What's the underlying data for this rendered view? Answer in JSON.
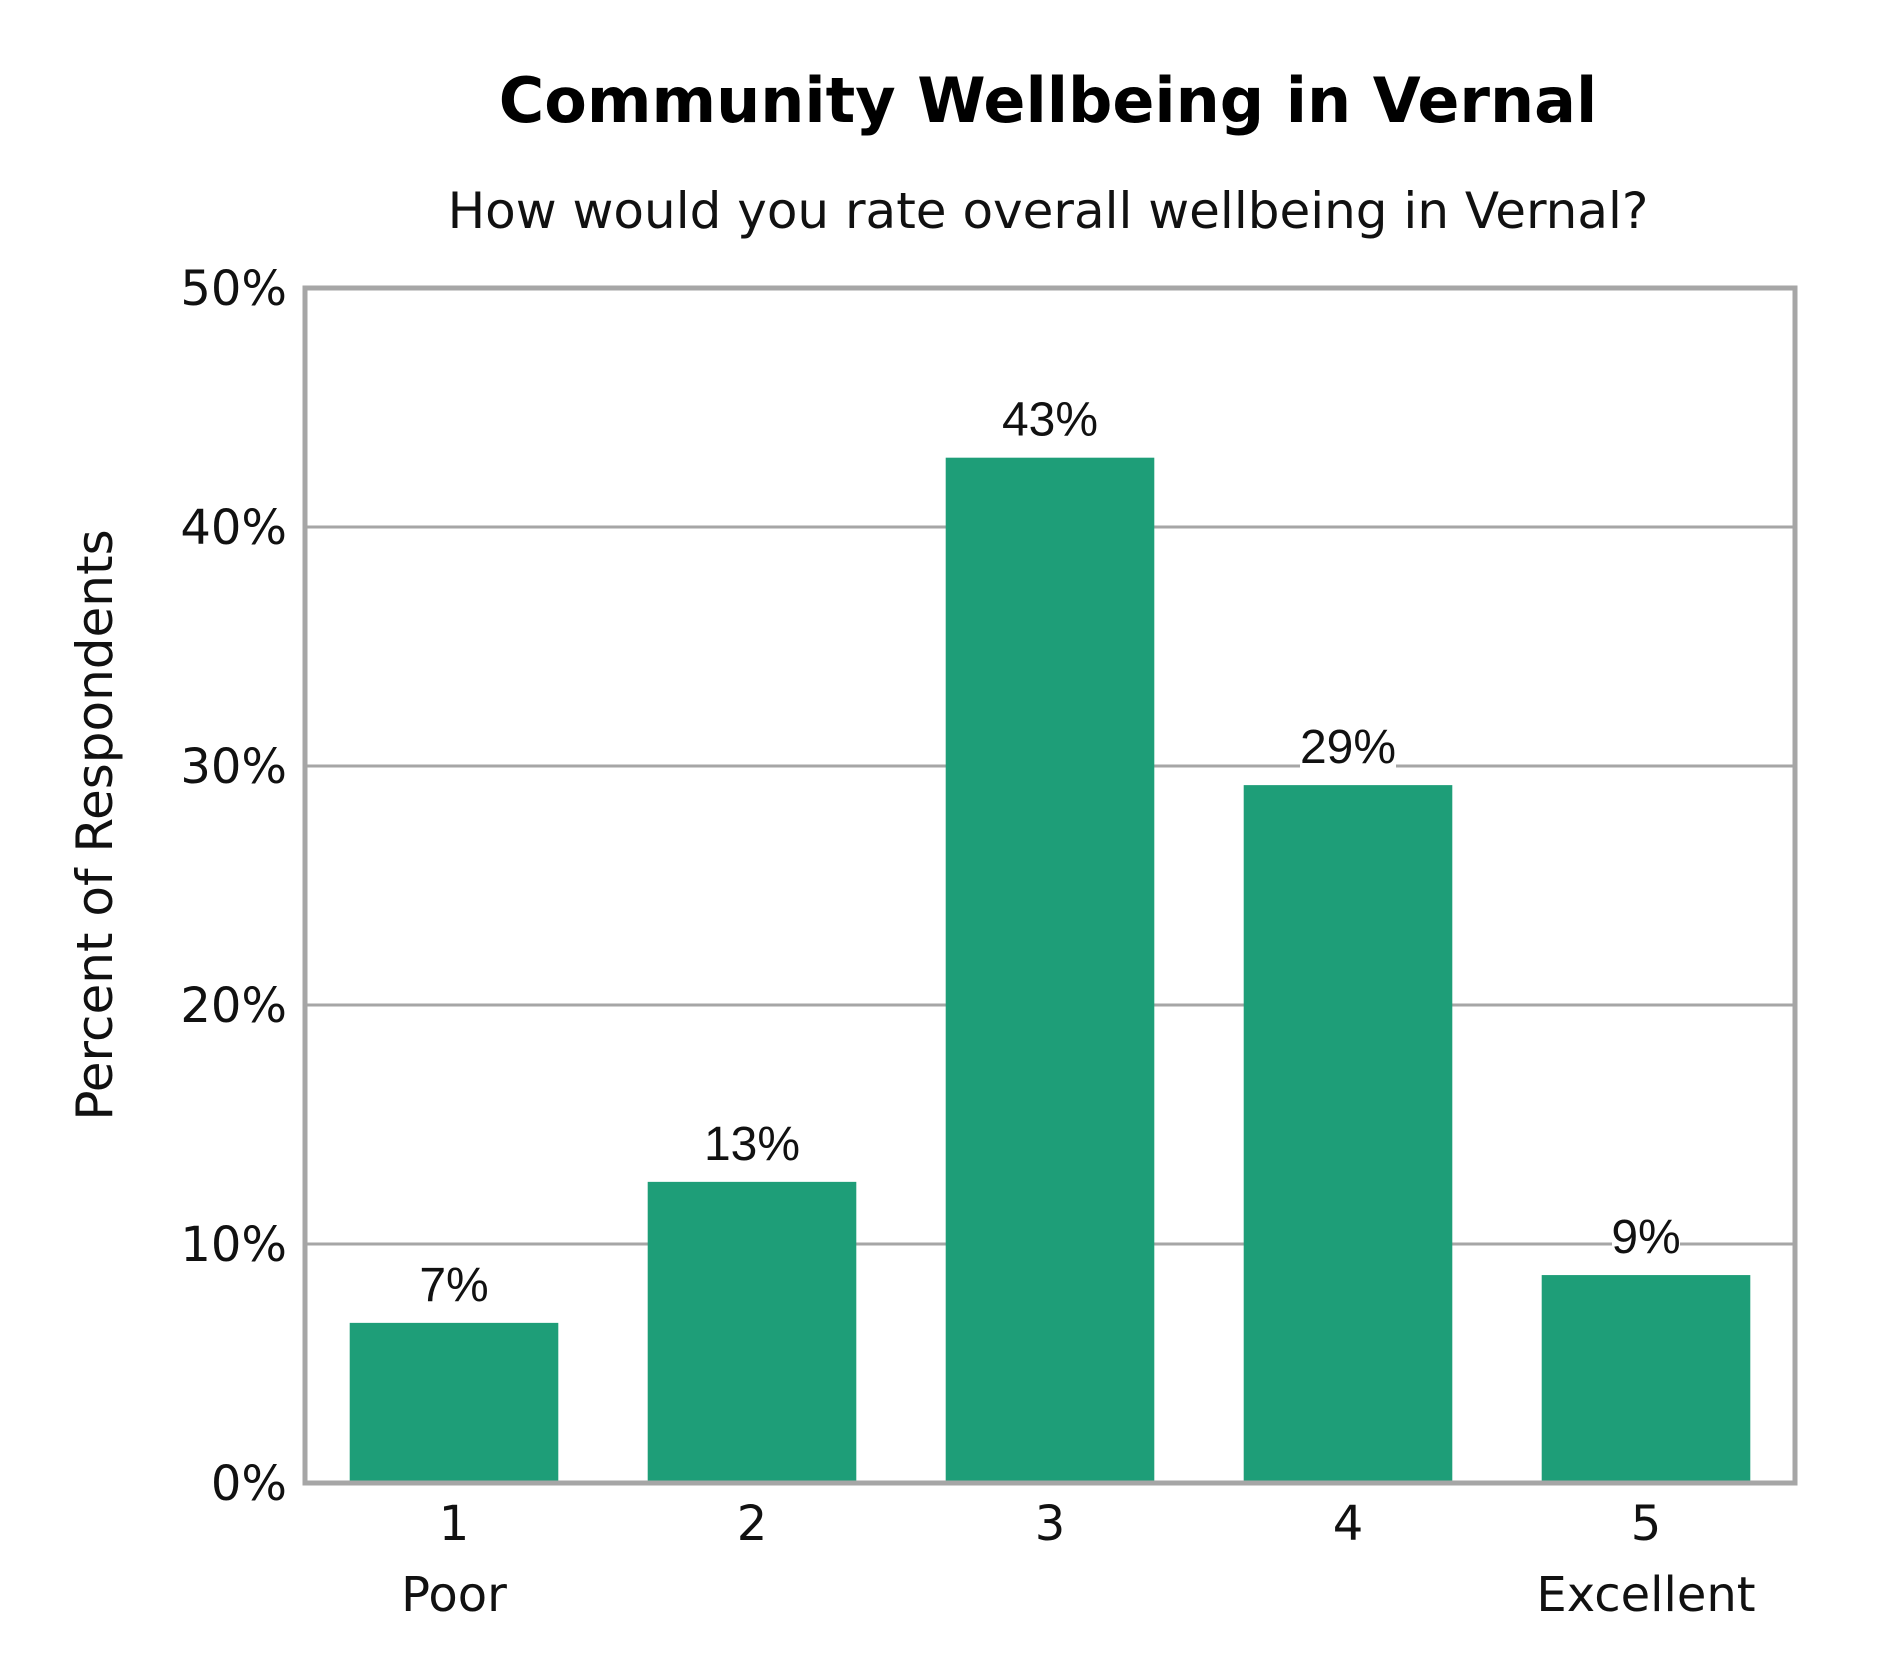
{
  "chart_data": {
    "type": "bar",
    "title": "Community Wellbeing in Vernal",
    "subtitle": "How would you rate overall wellbeing in Vernal?",
    "xlabel": "",
    "ylabel": "Percent of Respondents",
    "categories": [
      "1",
      "2",
      "3",
      "4",
      "5"
    ],
    "category_sublabels": [
      "Poor",
      "",
      "",
      "",
      "Excellent"
    ],
    "values": [
      6.7,
      12.6,
      42.9,
      29.2,
      8.7
    ],
    "data_labels": [
      "7%",
      "13%",
      "43%",
      "29%",
      "9%"
    ],
    "ylim": [
      0,
      50
    ],
    "y_ticks": [
      0,
      10,
      20,
      30,
      40,
      50
    ],
    "y_tick_labels": [
      "0%",
      "10%",
      "20%",
      "30%",
      "40%",
      "50%"
    ],
    "grid": true,
    "legend": "none",
    "colors": {
      "bar": "#1e9e78",
      "grid": "#a6a6a6",
      "frame": "#a6a6a6"
    }
  }
}
